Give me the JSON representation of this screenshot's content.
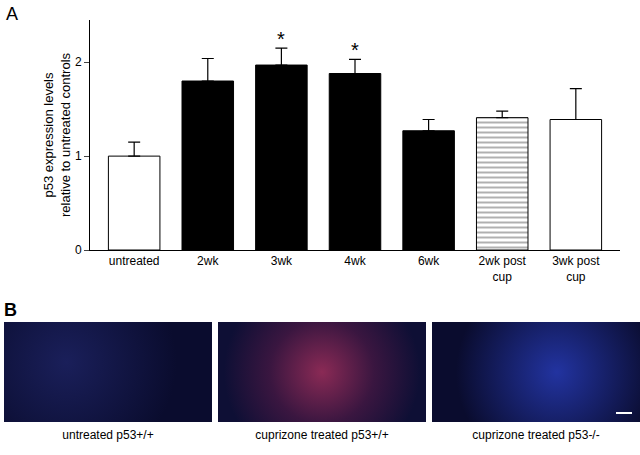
{
  "chart_data": {
    "type": "bar",
    "panel": "A",
    "ylabel": "p53 expression levels\nrelative to untreated controls",
    "categories": [
      "untreated",
      "2wk",
      "3wk",
      "4wk",
      "6wk",
      "2wk post\ncup",
      "3wk post\ncup"
    ],
    "values": [
      1.0,
      1.8,
      1.97,
      1.88,
      1.27,
      1.41,
      1.39
    ],
    "errors": [
      0.15,
      0.24,
      0.18,
      0.15,
      0.12,
      0.07,
      0.33
    ],
    "colors": [
      "#ffffff",
      "#000000",
      "#000000",
      "#000000",
      "#000000",
      "#b0b0b0",
      "#ffffff"
    ],
    "ylim": [
      0,
      2.45
    ],
    "yticks": [
      0,
      1,
      2
    ],
    "grid": false,
    "annotations": [
      {
        "text": "*",
        "category": "3wk"
      },
      {
        "text": "*",
        "category": "4wk"
      }
    ]
  },
  "panel_b": {
    "label": "B",
    "captions": [
      "untreated p53+/+",
      "cuprizone treated p53+/+",
      "cuprizone treated p53-/-"
    ]
  }
}
